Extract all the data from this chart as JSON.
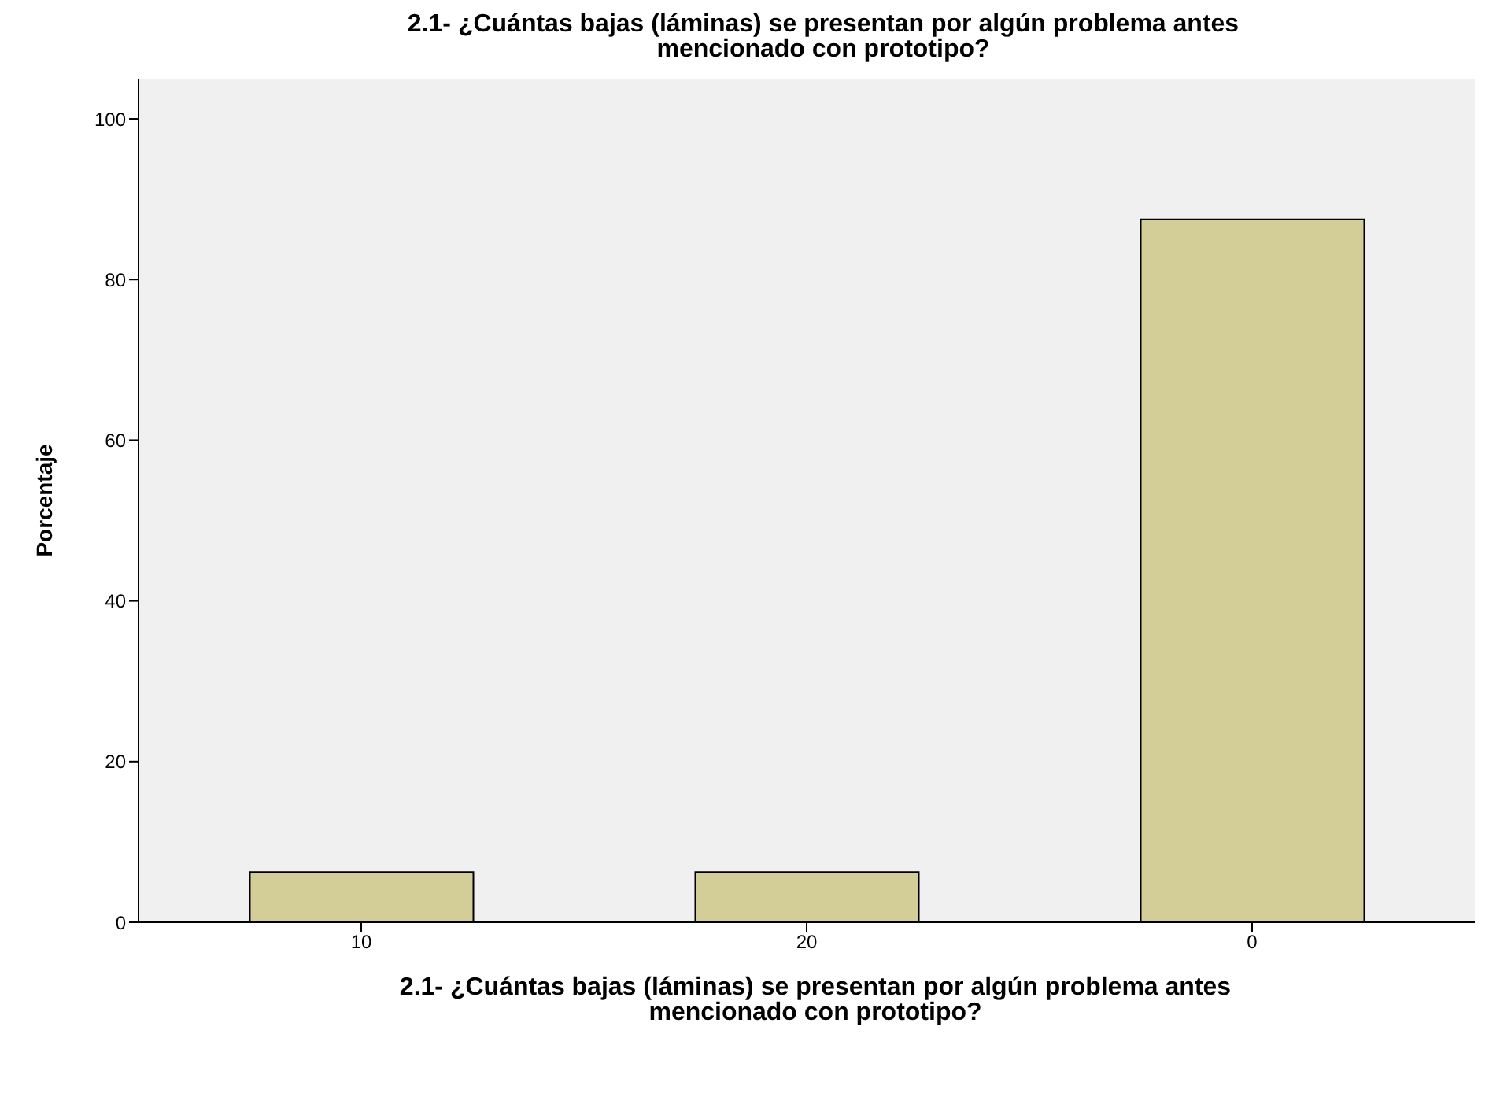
{
  "chart_data": {
    "type": "bar",
    "title": "2.1- ¿Cuántas bajas (láminas) se presentan por algún problema antes mencionado con prototipo?",
    "xlabel": "2.1- ¿Cuántas bajas (láminas) se presentan por algún problema antes mencionado con prototipo?",
    "ylabel": "Porcentaje",
    "categories": [
      "10",
      "20",
      "0"
    ],
    "values": [
      6.25,
      6.25,
      87.5
    ],
    "color": "#d3ce97",
    "ylim": [
      0,
      105
    ],
    "yticks": [
      0,
      20,
      40,
      60,
      80,
      100
    ]
  }
}
